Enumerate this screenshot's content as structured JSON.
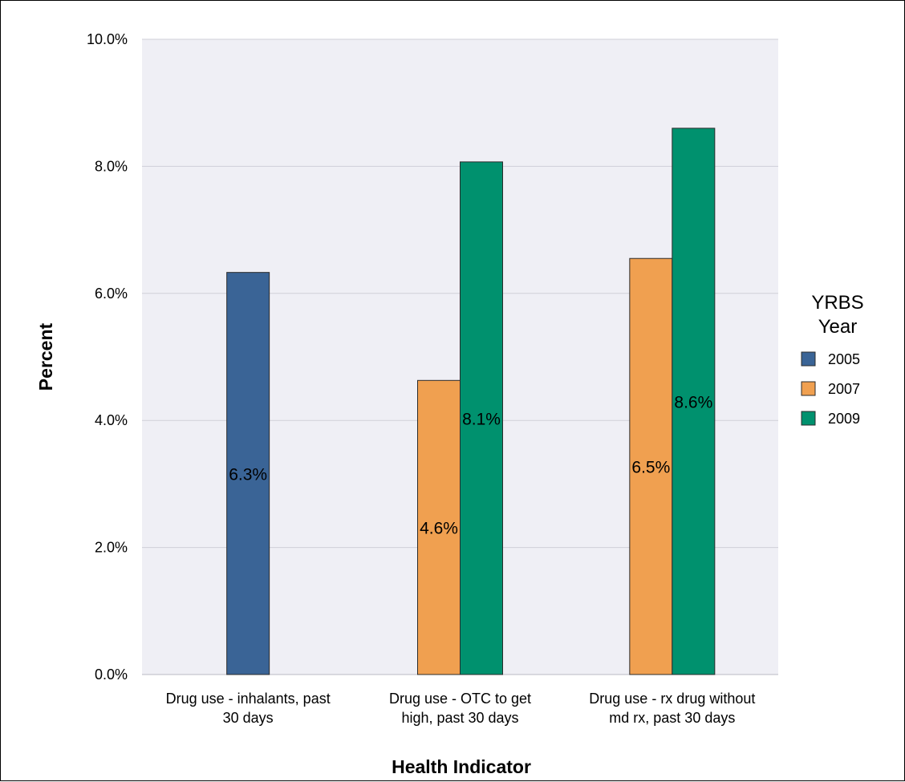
{
  "chart_data": {
    "type": "bar",
    "title": "",
    "xlabel": "Health Indicator",
    "ylabel": "Percent",
    "ylim": [
      0,
      10
    ],
    "yticks": [
      "0.0%",
      "2.0%",
      "4.0%",
      "6.0%",
      "8.0%",
      "10.0%"
    ],
    "grid": true,
    "legend": {
      "title_lines": [
        "YRBS",
        "Year"
      ],
      "placement": "right"
    },
    "categories": [
      [
        "Drug use - inhalants, past",
        "30 days"
      ],
      [
        "Drug use - OTC to get",
        "high, past 30 days"
      ],
      [
        "Drug use - rx drug without",
        "md rx, past 30 days"
      ]
    ],
    "series": [
      {
        "name": "2005",
        "color": "#3a6496",
        "values": [
          6.33,
          null,
          null
        ],
        "labels": [
          "6.3%",
          null,
          null
        ]
      },
      {
        "name": "2007",
        "color": "#f0a050",
        "values": [
          null,
          4.63,
          6.55
        ],
        "labels": [
          null,
          "4.6%",
          "6.5%"
        ]
      },
      {
        "name": "2009",
        "color": "#00916e",
        "values": [
          null,
          8.07,
          8.6
        ],
        "labels": [
          null,
          "8.1%",
          "8.6%"
        ]
      }
    ]
  }
}
